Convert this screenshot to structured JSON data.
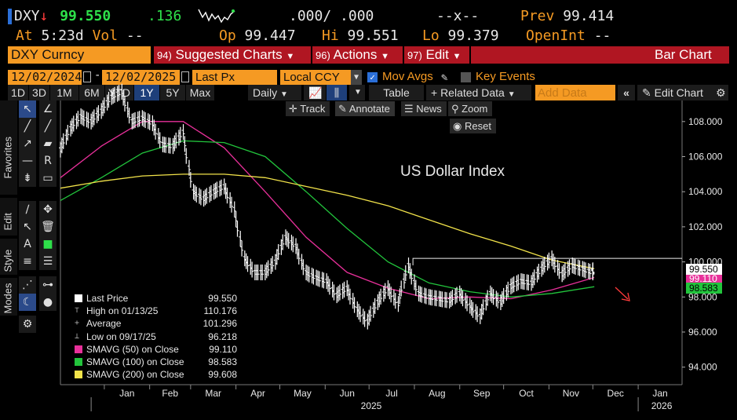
{
  "quote": {
    "ticker": "DXY",
    "arrow": "↓",
    "last": "99.550",
    "change": ".136",
    "bidask": ".000/ .000",
    "size": "--x--",
    "prev_label": "Prev",
    "prev_value": "99.414",
    "at_label": "At",
    "at_time": "5:23d",
    "vol_label": "Vol",
    "vol_value": "--",
    "op_label": "Op",
    "op_value": "99.447",
    "hi_label": "Hi",
    "hi_value": "99.551",
    "lo_label": "Lo",
    "lo_value": "99.379",
    "openint_label": "OpenInt",
    "openint_value": "--"
  },
  "menu": {
    "security": "DXY Curncy",
    "suggested_num": "94)",
    "suggested": "Suggested Charts",
    "actions_num": "96)",
    "actions": "Actions",
    "edit_num": "97)",
    "edit": "Edit",
    "chart_type": "Bar Chart"
  },
  "controls": {
    "start_date": "12/02/2024",
    "end_date": "12/02/2025",
    "field": "Last Px",
    "currency": "Local CCY",
    "mov_avgs": "Mov Avgs",
    "key_events": "Key Events",
    "mov_avgs_checked": true,
    "key_events_checked": false
  },
  "toolbar": {
    "periods": [
      "1D",
      "3D",
      "1M",
      "6M",
      "YTD",
      "1Y",
      "5Y",
      "Max"
    ],
    "selected_period": "1Y",
    "frequency": "Daily",
    "table": "Table",
    "related": "+ Related Data",
    "add_data_placeholder": "Add Data",
    "edit_chart": "Edit Chart"
  },
  "chart_tools": {
    "track": "Track",
    "annotate": "Annotate",
    "news": "News",
    "zoom": "Zoom",
    "reset": "Reset"
  },
  "side_tabs": [
    "Favorites",
    "Edit",
    "Style",
    "Modes"
  ],
  "legend": [
    {
      "label": "Last Price",
      "value": "99.550",
      "color": "#ffffff"
    },
    {
      "label": "High on 01/13/25",
      "value": "110.176",
      "color": "#cccccc"
    },
    {
      "label": "Average",
      "value": "101.296",
      "color": "#cccccc"
    },
    {
      "label": "Low on 09/17/25",
      "value": "96.218",
      "color": "#cccccc"
    },
    {
      "label": "SMAVG (50)  on Close",
      "value": "99.110",
      "color": "#e8309a"
    },
    {
      "label": "SMAVG (100)  on Close",
      "value": "98.583",
      "color": "#22c43c"
    },
    {
      "label": "SMAVG (200)  on Close",
      "value": "99.608",
      "color": "#f2e34a"
    }
  ],
  "chart_data": {
    "type": "line",
    "title": "US Dollar Index",
    "ylim": [
      93,
      109.2
    ],
    "y_ticks": [
      94,
      96,
      98,
      100,
      102,
      104,
      106,
      108
    ],
    "y_tick_labels": [
      "94.000",
      "96.000",
      "98.000",
      "100.000",
      "102.000",
      "104.000",
      "106.000",
      "108.000"
    ],
    "x_month_labels": [
      "Jan",
      "Feb",
      "Mar",
      "Apr",
      "May",
      "Jun",
      "Jul",
      "Aug",
      "Sep",
      "Oct",
      "Nov",
      "Dec",
      "Jan"
    ],
    "x_year_labels": [
      "2025",
      "2026"
    ],
    "x_start": "2024-12-02",
    "x_end": "2026-01-31",
    "series": [
      {
        "name": "Last Price",
        "color": "#ffffff",
        "x": [
          "2024-12-02",
          "2024-12-09",
          "2024-12-16",
          "2024-12-23",
          "2024-12-30",
          "2025-01-06",
          "2025-01-13",
          "2025-01-20",
          "2025-01-27",
          "2025-02-03",
          "2025-02-10",
          "2025-02-17",
          "2025-02-24",
          "2025-03-03",
          "2025-03-10",
          "2025-03-17",
          "2025-03-24",
          "2025-03-31",
          "2025-04-07",
          "2025-04-14",
          "2025-04-21",
          "2025-04-28",
          "2025-05-05",
          "2025-05-12",
          "2025-05-19",
          "2025-05-26",
          "2025-06-02",
          "2025-06-09",
          "2025-06-16",
          "2025-06-23",
          "2025-06-30",
          "2025-07-07",
          "2025-07-14",
          "2025-07-21",
          "2025-07-28",
          "2025-08-04",
          "2025-08-11",
          "2025-08-18",
          "2025-08-25",
          "2025-09-01",
          "2025-09-08",
          "2025-09-15",
          "2025-09-22",
          "2025-09-29",
          "2025-10-06",
          "2025-10-13",
          "2025-10-20",
          "2025-10-27",
          "2025-11-03",
          "2025-11-10",
          "2025-11-17",
          "2025-11-24",
          "2025-12-01",
          "2025-12-02"
        ],
        "values": [
          106.4,
          107.6,
          108.3,
          108.0,
          108.6,
          109.4,
          109.7,
          108.0,
          108.2,
          107.9,
          106.7,
          106.6,
          107.4,
          104.0,
          103.6,
          104.0,
          104.3,
          103.0,
          100.2,
          99.4,
          99.4,
          100.0,
          101.4,
          100.9,
          99.4,
          99.1,
          98.9,
          98.1,
          98.5,
          97.3,
          96.6,
          97.7,
          98.5,
          97.6,
          99.8,
          98.2,
          98.0,
          97.9,
          97.8,
          98.2,
          97.5,
          96.9,
          98.2,
          97.7,
          98.6,
          98.9,
          98.8,
          99.6,
          100.2,
          99.3,
          99.8,
          99.6,
          99.4,
          99.55
        ]
      },
      {
        "name": "SMAVG (50) on Close",
        "color": "#e8309a",
        "x": [
          "2024-12-02",
          "2024-12-30",
          "2025-01-27",
          "2025-02-24",
          "2025-03-24",
          "2025-04-21",
          "2025-05-19",
          "2025-06-16",
          "2025-07-14",
          "2025-08-11",
          "2025-09-08",
          "2025-10-06",
          "2025-11-03",
          "2025-12-02"
        ],
        "values": [
          104.8,
          106.6,
          108.0,
          108.0,
          106.5,
          104.0,
          101.4,
          99.4,
          98.5,
          97.9,
          98.0,
          97.9,
          98.4,
          99.11
        ]
      },
      {
        "name": "SMAVG (100) on Close",
        "color": "#22c43c",
        "x": [
          "2024-12-02",
          "2024-12-30",
          "2025-01-27",
          "2025-02-24",
          "2025-03-24",
          "2025-04-21",
          "2025-05-19",
          "2025-06-16",
          "2025-07-14",
          "2025-08-11",
          "2025-09-08",
          "2025-10-06",
          "2025-11-03",
          "2025-12-02"
        ],
        "values": [
          103.5,
          104.8,
          106.2,
          106.9,
          106.8,
          106.0,
          104.0,
          101.9,
          100.0,
          98.8,
          98.3,
          98.0,
          98.2,
          98.583
        ]
      },
      {
        "name": "SMAVG (200) on Close",
        "color": "#f2e34a",
        "x": [
          "2024-12-02",
          "2024-12-30",
          "2025-01-27",
          "2025-02-24",
          "2025-03-24",
          "2025-04-21",
          "2025-05-19",
          "2025-06-16",
          "2025-07-14",
          "2025-08-11",
          "2025-09-08",
          "2025-10-06",
          "2025-11-03",
          "2025-12-02"
        ],
        "values": [
          104.2,
          104.6,
          104.9,
          105.0,
          105.0,
          104.8,
          104.3,
          103.8,
          103.2,
          102.4,
          101.6,
          100.9,
          100.1,
          99.608
        ]
      }
    ],
    "range_box": {
      "from": "2025-07-31",
      "to": "2025-12-02",
      "level": 100.2
    }
  },
  "price_tags": [
    {
      "value": "99.550",
      "bg": "#ffffff",
      "fg": "#000000"
    },
    {
      "value": "99.110",
      "bg": "#e8309a",
      "fg": "#ffffff"
    },
    {
      "value": "98.583",
      "bg": "#22c43c",
      "fg": "#000000"
    }
  ],
  "colors": {
    "accent_orange": "#f59a23",
    "menu_red": "#b01622",
    "up_green": "#2ee04a",
    "down_red": "#ff3b3b",
    "selected_blue": "#1e3f7a"
  }
}
